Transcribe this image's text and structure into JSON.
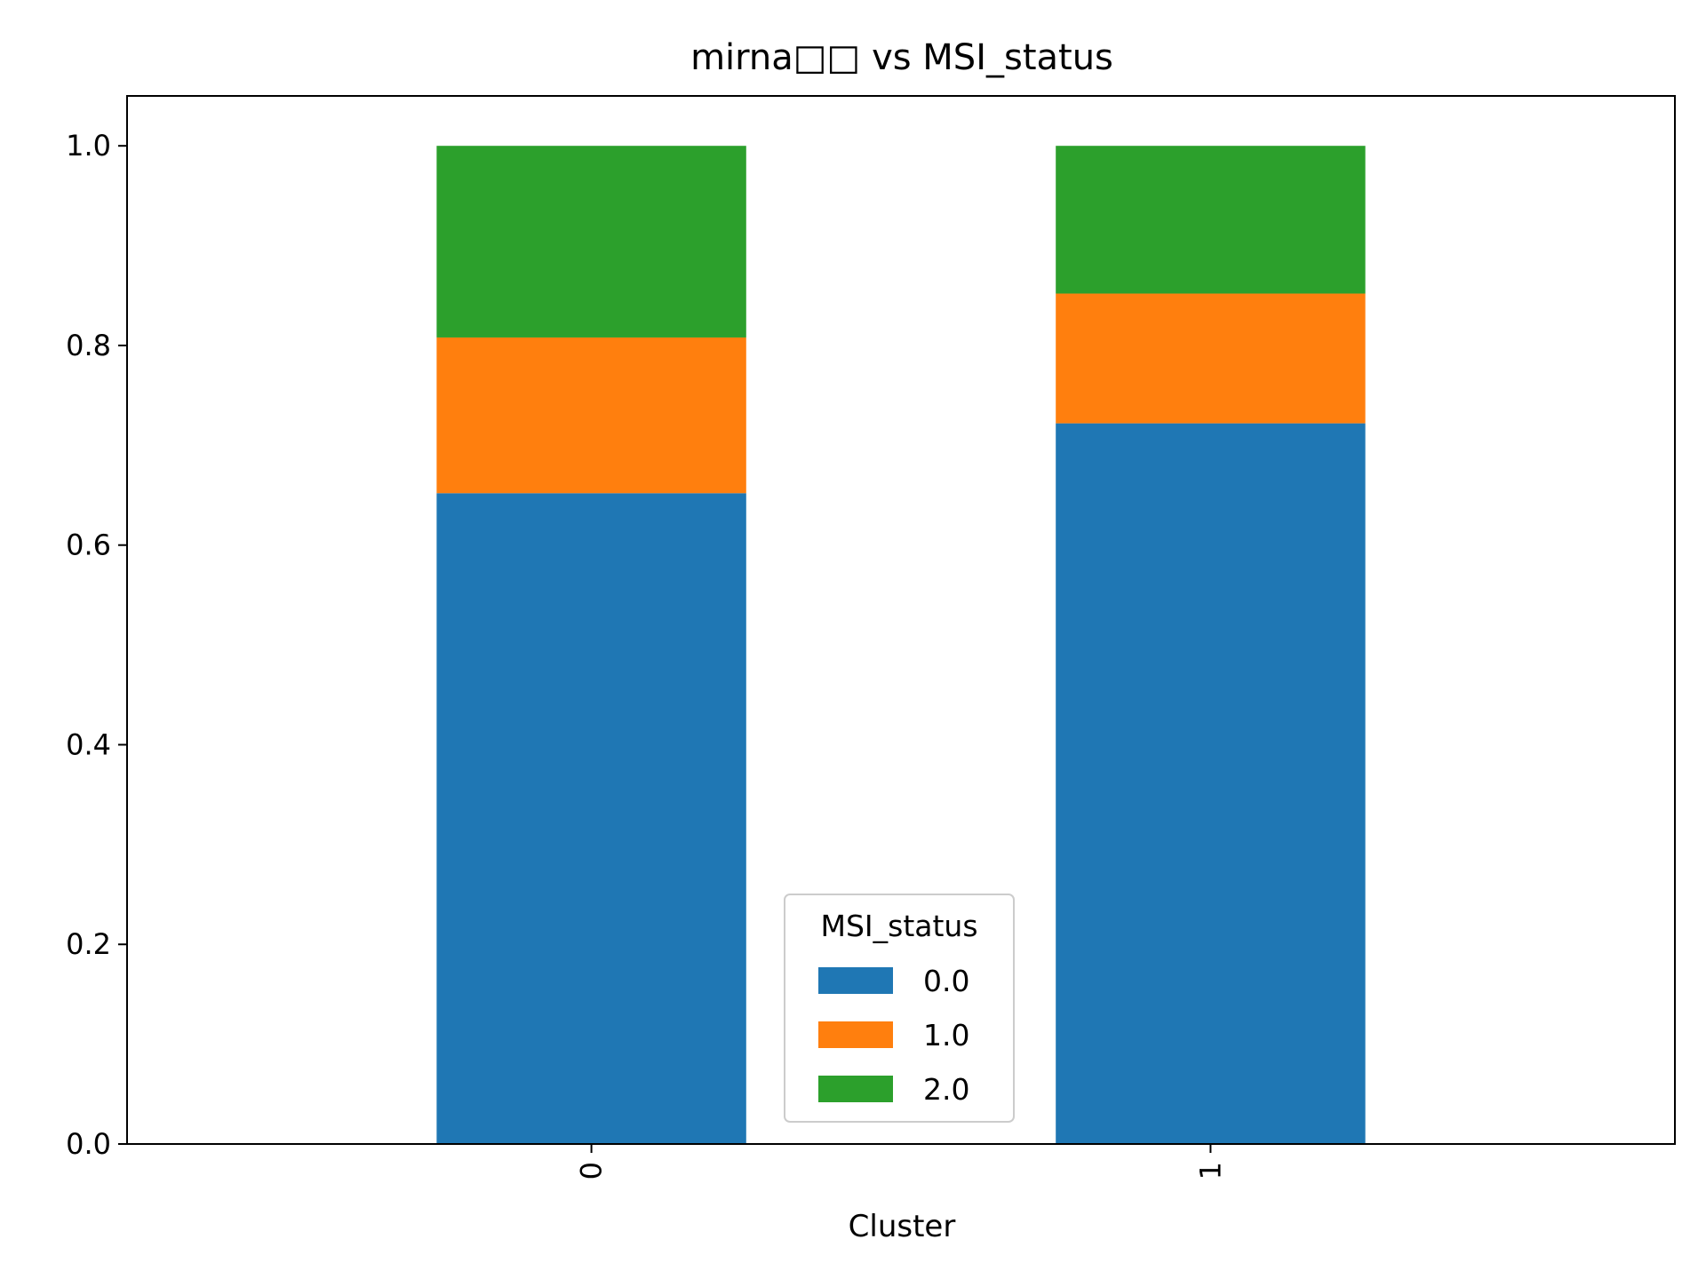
{
  "chart_data": {
    "type": "bar",
    "stacked": true,
    "title": "mirna□□ vs MSI_status",
    "xlabel": "Cluster",
    "ylabel": "",
    "categories": [
      "0",
      "1"
    ],
    "ylim": [
      0,
      1.05
    ],
    "yticks": [
      "0.0",
      "0.2",
      "0.4",
      "0.6",
      "0.8",
      "1.0"
    ],
    "grid": false,
    "legend": {
      "title": "MSI_status",
      "position": "lower-center"
    },
    "series": [
      {
        "name": "0.0",
        "color": "#1f77b4",
        "values": [
          0.652,
          0.722
        ]
      },
      {
        "name": "1.0",
        "color": "#ff7f0e",
        "values": [
          0.156,
          0.13
        ]
      },
      {
        "name": "2.0",
        "color": "#2ca02c",
        "values": [
          0.192,
          0.148
        ]
      }
    ]
  }
}
